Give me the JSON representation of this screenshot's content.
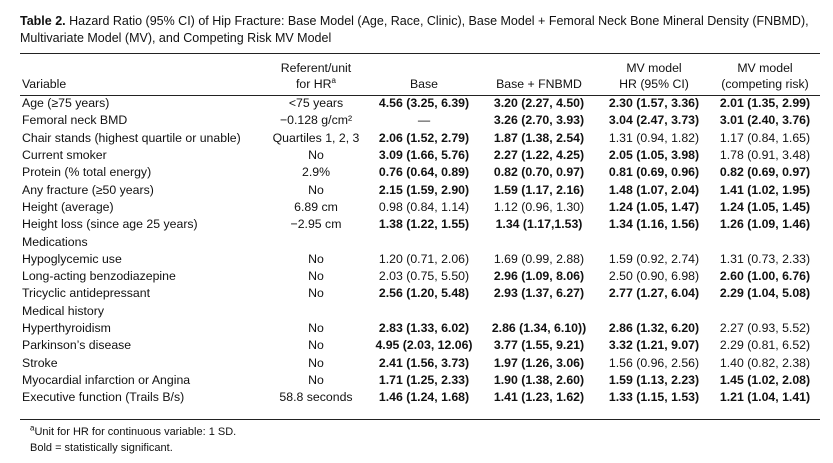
{
  "caption": {
    "label": "Table 2.",
    "text": "Hazard Ratio (95% CI) of Hip Fracture: Base Model (Age, Race, Clinic), Base Model + Femoral Neck Bone Mineral Density (FNBMD), Multivariate Model (MV), and Competing Risk MV Model"
  },
  "headers": {
    "variable": "Variable",
    "ref_line1": "Referent/unit",
    "ref_line2": "for HR",
    "ref_sup": "a",
    "base": "Base",
    "fnbmd": "Base + FNBMD",
    "mv_line1": "MV model",
    "mv_line2": "HR (95% CI)",
    "comp_line1": "MV model",
    "comp_line2": "(competing risk)"
  },
  "rows": [
    {
      "name": "age",
      "variable": "Age (≥75 years)",
      "indent": false,
      "ref": "<75 years",
      "cells": [
        {
          "v": "4.56 (3.25, 6.39)",
          "b": true
        },
        {
          "v": "3.20 (2.27, 4.50)",
          "b": true
        },
        {
          "v": "2.30 (1.57, 3.36)",
          "b": true
        },
        {
          "v": "2.01 (1.35, 2.99)",
          "b": true
        }
      ]
    },
    {
      "name": "femoral-neck-bmd",
      "variable": "Femoral neck BMD",
      "indent": false,
      "ref": "−0.128 g/cm²",
      "cells": [
        {
          "v": "—",
          "b": false
        },
        {
          "v": "3.26 (2.70, 3.93)",
          "b": true
        },
        {
          "v": "3.04 (2.47, 3.73)",
          "b": true
        },
        {
          "v": "3.01 (2.40, 3.76)",
          "b": true
        }
      ]
    },
    {
      "name": "chair-stands",
      "variable": "Chair stands (highest quartile or unable)",
      "indent": false,
      "ref": "Quartiles 1, 2, 3",
      "cells": [
        {
          "v": "2.06 (1.52, 2.79)",
          "b": true
        },
        {
          "v": "1.87 (1.38, 2.54)",
          "b": true
        },
        {
          "v": "1.31 (0.94, 1.82)",
          "b": false
        },
        {
          "v": "1.17 (0.84, 1.65)",
          "b": false
        }
      ]
    },
    {
      "name": "current-smoker",
      "variable": "Current smoker",
      "indent": false,
      "ref": "No",
      "cells": [
        {
          "v": "3.09 (1.66, 5.76)",
          "b": true
        },
        {
          "v": "2.27 (1.22, 4.25)",
          "b": true
        },
        {
          "v": "2.05 (1.05, 3.98)",
          "b": true
        },
        {
          "v": "1.78 (0.91, 3.48)",
          "b": false
        }
      ]
    },
    {
      "name": "protein",
      "variable": "Protein (% total energy)",
      "indent": false,
      "ref": "2.9%",
      "cells": [
        {
          "v": "0.76 (0.64, 0.89)",
          "b": true
        },
        {
          "v": "0.82 (0.70, 0.97)",
          "b": true
        },
        {
          "v": "0.81 (0.69, 0.96)",
          "b": true
        },
        {
          "v": "0.82 (0.69, 0.97)",
          "b": true
        }
      ]
    },
    {
      "name": "any-fracture",
      "variable": "Any fracture (≥50 years)",
      "indent": false,
      "ref": "No",
      "cells": [
        {
          "v": "2.15 (1.59, 2.90)",
          "b": true
        },
        {
          "v": "1.59 (1.17, 2.16)",
          "b": true
        },
        {
          "v": "1.48 (1.07, 2.04)",
          "b": true
        },
        {
          "v": "1.41 (1.02, 1.95)",
          "b": true
        }
      ]
    },
    {
      "name": "height",
      "variable": "Height (average)",
      "indent": false,
      "ref": "6.89 cm",
      "cells": [
        {
          "v": "0.98 (0.84, 1.14)",
          "b": false
        },
        {
          "v": "1.12 (0.96, 1.30)",
          "b": false
        },
        {
          "v": "1.24 (1.05, 1.47)",
          "b": true
        },
        {
          "v": "1.24 (1.05, 1.45)",
          "b": true
        }
      ]
    },
    {
      "name": "height-loss",
      "variable": "Height loss (since age 25 years)",
      "indent": false,
      "ref": "−2.95 cm",
      "cells": [
        {
          "v": "1.38 (1.22, 1.55)",
          "b": true
        },
        {
          "v": "1.34 (1.17,1.53)",
          "b": true
        },
        {
          "v": "1.34 (1.16, 1.56)",
          "b": true
        },
        {
          "v": "1.26 (1.09, 1.46)",
          "b": true
        }
      ]
    },
    {
      "name": "medications",
      "variable": "Medications",
      "indent": false,
      "ref": "",
      "cells": [
        {
          "v": "",
          "b": false
        },
        {
          "v": "",
          "b": false
        },
        {
          "v": "",
          "b": false
        },
        {
          "v": "",
          "b": false
        }
      ]
    },
    {
      "name": "hypoglycemic",
      "variable": "Hypoglycemic use",
      "indent": true,
      "ref": "No",
      "cells": [
        {
          "v": "1.20 (0.71, 2.06)",
          "b": false
        },
        {
          "v": "1.69 (0.99, 2.88)",
          "b": false
        },
        {
          "v": "1.59 (0.92, 2.74)",
          "b": false
        },
        {
          "v": "1.31 (0.73, 2.33)",
          "b": false
        }
      ]
    },
    {
      "name": "benzodiazepine",
      "variable": "Long-acting benzodiazepine",
      "indent": true,
      "ref": "No",
      "cells": [
        {
          "v": "2.03 (0.75, 5.50)",
          "b": false
        },
        {
          "v": "2.96 (1.09, 8.06)",
          "b": true
        },
        {
          "v": "2.50 (0.90, 6.98)",
          "b": false
        },
        {
          "v": "2.60 (1.00, 6.76)",
          "b": true
        }
      ]
    },
    {
      "name": "tricyclic",
      "variable": "Tricyclic antidepressant",
      "indent": true,
      "ref": "No",
      "cells": [
        {
          "v": "2.56 (1.20, 5.48)",
          "b": true
        },
        {
          "v": "2.93 (1.37, 6.27)",
          "b": true
        },
        {
          "v": "2.77 (1.27, 6.04)",
          "b": true
        },
        {
          "v": "2.29 (1.04, 5.08)",
          "b": true
        }
      ]
    },
    {
      "name": "medical-history",
      "variable": "Medical history",
      "indent": false,
      "ref": "",
      "cells": [
        {
          "v": "",
          "b": false
        },
        {
          "v": "",
          "b": false
        },
        {
          "v": "",
          "b": false
        },
        {
          "v": "",
          "b": false
        }
      ]
    },
    {
      "name": "hyperthyroidism",
      "variable": "Hyperthyroidism",
      "indent": true,
      "ref": "No",
      "cells": [
        {
          "v": "2.83 (1.33, 6.02)",
          "b": true
        },
        {
          "v": "2.86 (1.34, 6.10))",
          "b": true
        },
        {
          "v": "2.86 (1.32, 6.20)",
          "b": true
        },
        {
          "v": "2.27 (0.93, 5.52)",
          "b": false
        }
      ]
    },
    {
      "name": "parkinsons",
      "variable": "Parkinson’s disease",
      "indent": true,
      "ref": "No",
      "cells": [
        {
          "v": "4.95 (2.03, 12.06)",
          "b": true
        },
        {
          "v": "3.77 (1.55, 9.21)",
          "b": true
        },
        {
          "v": "3.32 (1.21, 9.07)",
          "b": true
        },
        {
          "v": "2.29 (0.81, 6.52)",
          "b": false
        }
      ]
    },
    {
      "name": "stroke",
      "variable": "Stroke",
      "indent": true,
      "ref": "No",
      "cells": [
        {
          "v": "2.41 (1.56, 3.73)",
          "b": true
        },
        {
          "v": "1.97 (1.26, 3.06)",
          "b": true
        },
        {
          "v": "1.56 (0.96, 2.56)",
          "b": false
        },
        {
          "v": "1.40 (0.82, 2.38)",
          "b": false
        }
      ]
    },
    {
      "name": "myocardial-infarction",
      "variable": "Myocardial infarction or Angina",
      "indent": true,
      "ref": "No",
      "cells": [
        {
          "v": "1.71 (1.25, 2.33)",
          "b": true
        },
        {
          "v": "1.90 (1.38, 2.60)",
          "b": true
        },
        {
          "v": "1.59 (1.13, 2.23)",
          "b": true
        },
        {
          "v": "1.45 (1.02, 2.08)",
          "b": true
        }
      ]
    },
    {
      "name": "executive-function",
      "variable": "Executive function (Trails B/s)",
      "indent": false,
      "ref": "58.8 seconds",
      "cells": [
        {
          "v": "1.46 (1.24, 1.68)",
          "b": true
        },
        {
          "v": "1.41 (1.23, 1.62)",
          "b": true
        },
        {
          "v": "1.33 (1.15, 1.53)",
          "b": true
        },
        {
          "v": "1.21 (1.04, 1.41)",
          "b": true
        }
      ]
    }
  ],
  "notes": {
    "sup": "a",
    "note1": "Unit for HR for continuous variable: 1 SD.",
    "note2": "Bold = statistically significant."
  }
}
